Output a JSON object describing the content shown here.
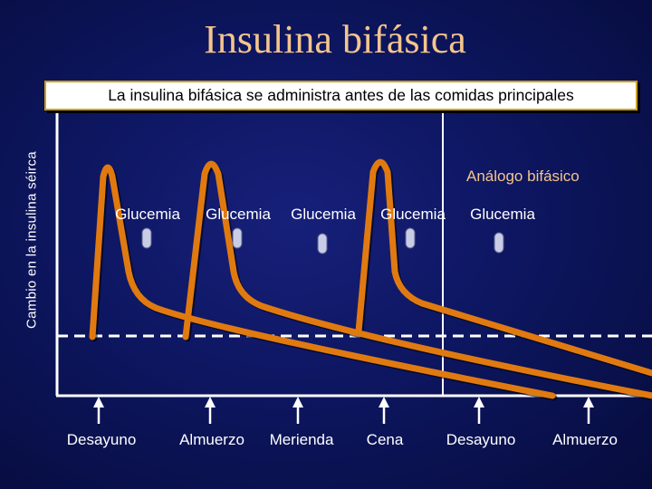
{
  "slide": {
    "title": "Insulina bifásica",
    "subtitle": "La insulina bifásica se administra antes de las comidas principales",
    "y_axis_label": "Cambio en la insulina séirca",
    "curve_label": "Análogo bifásico"
  },
  "glucemia_labels": [
    "Glucemia",
    "Glucemia",
    "Glucemia",
    "Glucemia",
    "Glucemia"
  ],
  "timeline": [
    "Desayuno",
    "Almuerzo",
    "Merienda",
    "Cena",
    "Desayuno",
    "Almuerzo"
  ],
  "colors": {
    "curve": "#e07a10",
    "title": "#f4c58c",
    "axis": "#ffffff",
    "drop": "#c8cce6"
  }
}
